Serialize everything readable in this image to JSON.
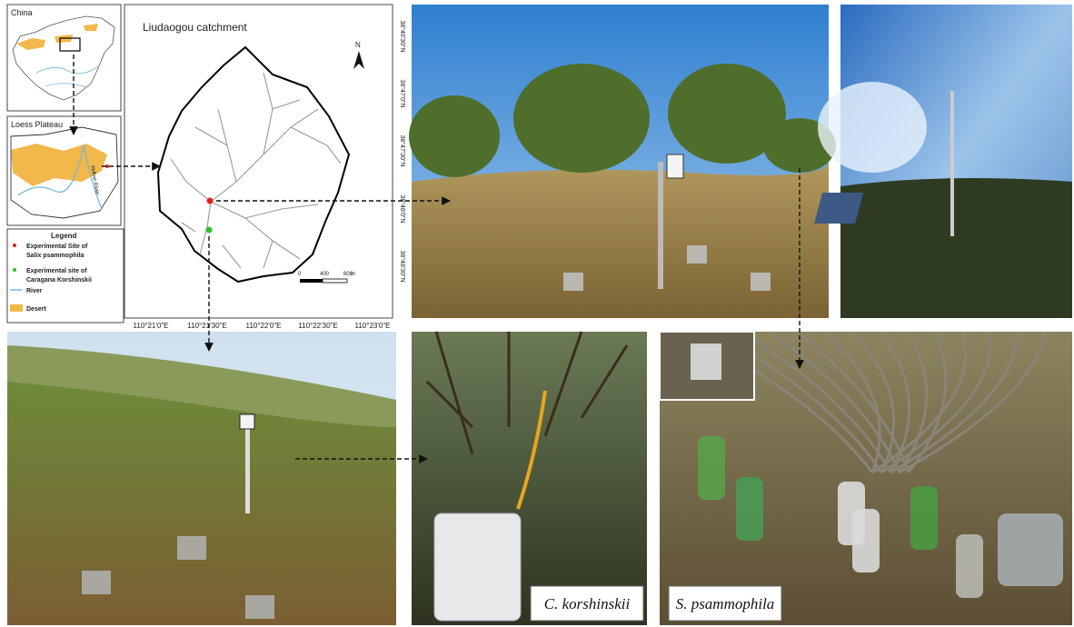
{
  "insets": {
    "china": "China",
    "loess": "Loess Plateau",
    "yellow_river": "Yellow River"
  },
  "legend": {
    "title": "Legend",
    "items": [
      [
        "Experimental Site of",
        "Salix psammophila"
      ],
      [
        "Experimental site of",
        "Caragana Korshinskii"
      ],
      [
        "River"
      ],
      [
        "Desert"
      ]
    ]
  },
  "map": {
    "title": "Liudaogou catchment",
    "north": "N",
    "scale": [
      "0",
      "400",
      "800",
      "m"
    ],
    "x_labels": [
      "110°21'0\"E",
      "110°21'30\"E",
      "110°22'0\"E",
      "110°22'30\"E",
      "110°23'0\"E"
    ],
    "y_labels": [
      "38°46'30\"N",
      "38°47'0\"N",
      "38°47'30\"N",
      "38°48'0\"N",
      "38°48'30\"N"
    ]
  },
  "captions": [
    "C. korshinskii",
    "S. psammophila"
  ]
}
